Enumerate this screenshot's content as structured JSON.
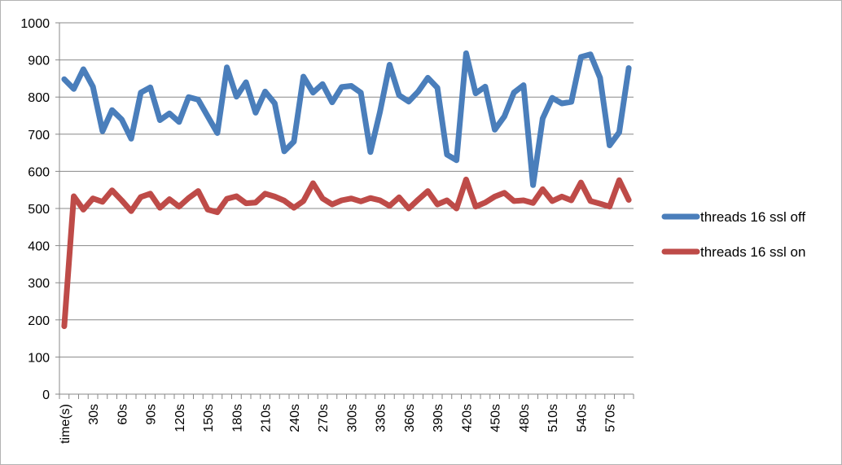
{
  "chart_data": {
    "type": "line",
    "title": "",
    "xlabel": "",
    "ylabel": "",
    "ylim": [
      0,
      1000
    ],
    "yticks": [
      0,
      100,
      200,
      300,
      400,
      500,
      600,
      700,
      800,
      900,
      1000
    ],
    "grid": "horizontal",
    "legend_position": "right",
    "x_labels": [
      "time(s)",
      "",
      "",
      "30s",
      "",
      "",
      "60s",
      "",
      "",
      "90s",
      "",
      "",
      "120s",
      "",
      "",
      "150s",
      "",
      "",
      "180s",
      "",
      "",
      "210s",
      "",
      "",
      "240s",
      "",
      "",
      "270s",
      "",
      "",
      "300s",
      "",
      "",
      "330s",
      "",
      "",
      "360s",
      "",
      "",
      "390s",
      "",
      "",
      "420s",
      "",
      "",
      "450s",
      "",
      "",
      "480s",
      "",
      "",
      "510s",
      "",
      "",
      "540s",
      "",
      "",
      "570s",
      "",
      ""
    ],
    "series": [
      {
        "name": "threads 16 ssl off",
        "color": "#4a7ebb",
        "values": [
          848,
          822,
          875,
          828,
          708,
          765,
          740,
          688,
          812,
          826,
          738,
          756,
          733,
          800,
          793,
          748,
          703,
          880,
          801,
          840,
          758,
          815,
          783,
          654,
          680,
          855,
          812,
          835,
          786,
          827,
          830,
          812,
          652,
          760,
          887,
          805,
          788,
          815,
          852,
          825,
          645,
          630,
          918,
          810,
          828,
          712,
          748,
          812,
          832,
          563,
          742,
          798,
          783,
          787,
          908,
          915,
          852,
          670,
          705,
          878
        ]
      },
      {
        "name": "threads 16 ssl on",
        "color": "#be4b48",
        "values": [
          183,
          533,
          497,
          527,
          518,
          549,
          522,
          493,
          531,
          540,
          502,
          525,
          505,
          528,
          547,
          497,
          490,
          526,
          533,
          514,
          516,
          540,
          532,
          521,
          502,
          520,
          568,
          527,
          511,
          522,
          527,
          519,
          528,
          522,
          507,
          530,
          500,
          524,
          547,
          511,
          522,
          500,
          578,
          505,
          516,
          532,
          542,
          520,
          522,
          515,
          552,
          520,
          532,
          522,
          570,
          520,
          513,
          505,
          576,
          523
        ]
      }
    ]
  }
}
